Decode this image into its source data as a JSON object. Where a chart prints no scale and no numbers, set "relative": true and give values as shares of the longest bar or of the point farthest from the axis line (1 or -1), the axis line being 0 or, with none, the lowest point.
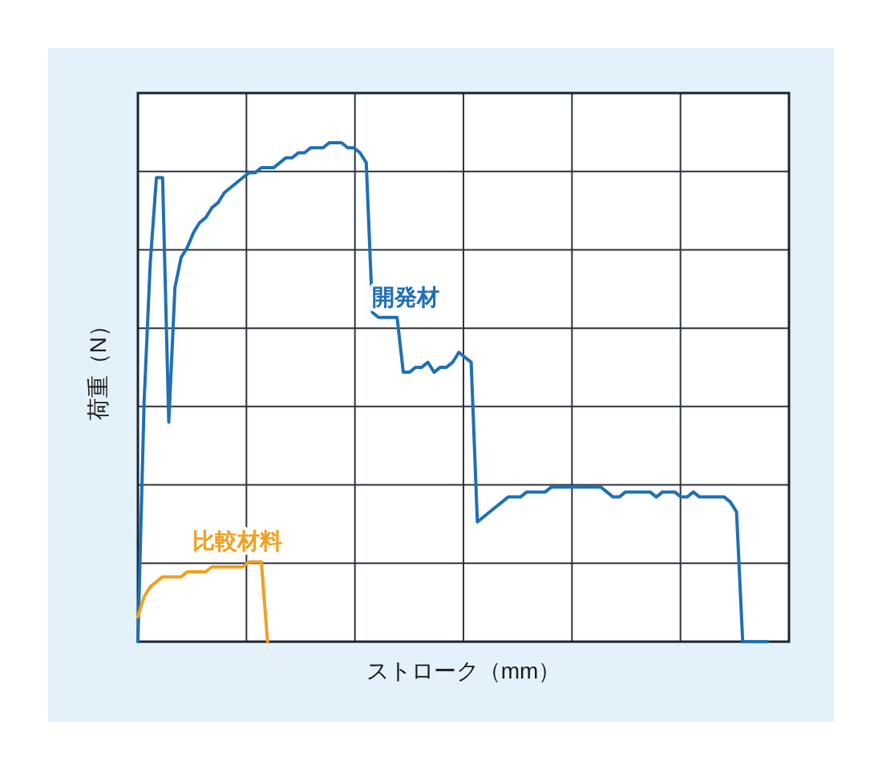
{
  "chart_data": {
    "type": "line",
    "relative": true,
    "xlabel": "ストローク（mm）",
    "ylabel": "荷重（N）",
    "grid": true,
    "categories": [
      null,
      null,
      null,
      null,
      null,
      null,
      null,
      null,
      null,
      null,
      null,
      null,
      null,
      null,
      null,
      null,
      null,
      null,
      null,
      null,
      null,
      null,
      null,
      null,
      null,
      null,
      null,
      null,
      null,
      null,
      null,
      null,
      null,
      null,
      null,
      null,
      null,
      null,
      null,
      null,
      null,
      null,
      null,
      null,
      null,
      null,
      null,
      null,
      null,
      null,
      null,
      null,
      null,
      null,
      null,
      null,
      null,
      null,
      null,
      null,
      null,
      null,
      null,
      null,
      null,
      null,
      null,
      null,
      null,
      null,
      null,
      null,
      null,
      null,
      null,
      null,
      null,
      null,
      null,
      null,
      null,
      null,
      null,
      null,
      null,
      null,
      null,
      null,
      null,
      null,
      null,
      null,
      null,
      null,
      null,
      null,
      null,
      null,
      null,
      null,
      null,
      null,
      null
    ],
    "series": [
      {
        "name": "開発材",
        "color": "#1f6fb5",
        "values": [
          0,
          0.48,
          0.76,
          0.93,
          0.93,
          0.44,
          0.71,
          0.77,
          0.79,
          0.82,
          0.84,
          0.85,
          0.87,
          0.88,
          0.9,
          0.91,
          0.92,
          0.93,
          0.94,
          0.94,
          0.95,
          0.95,
          0.95,
          0.96,
          0.97,
          0.97,
          0.98,
          0.98,
          0.99,
          0.99,
          0.99,
          1,
          1,
          1,
          0.99,
          0.99,
          0.98,
          0.96,
          0.66,
          0.65,
          0.65,
          0.65,
          0.65,
          0.54,
          0.54,
          0.55,
          0.55,
          0.56,
          0.54,
          0.55,
          0.55,
          0.56,
          0.58,
          0.57,
          0.56,
          0.24,
          0.25,
          0.26,
          0.27,
          0.28,
          0.29,
          0.29,
          0.29,
          0.3,
          0.3,
          0.3,
          0.3,
          0.31,
          0.31,
          0.31,
          0.31,
          0.31,
          0.31,
          0.31,
          0.31,
          0.31,
          0.3,
          0.29,
          0.29,
          0.3,
          0.3,
          0.3,
          0.3,
          0.3,
          0.29,
          0.3,
          0.3,
          0.3,
          0.29,
          0.29,
          0.3,
          0.29,
          0.29,
          0.29,
          0.29,
          0.29,
          0.28,
          0.26,
          0,
          0,
          0,
          0,
          0
        ]
      },
      {
        "name": "比較材料",
        "color": "#f0a020",
        "values": [
          0.05,
          0.09,
          0.11,
          0.12,
          0.13,
          0.13,
          0.13,
          0.13,
          0.14,
          0.14,
          0.14,
          0.14,
          0.15,
          0.15,
          0.15,
          0.15,
          0.15,
          0.15,
          0.16,
          0.16,
          0.16,
          0,
          null,
          null,
          null,
          null,
          null,
          null,
          null,
          null,
          null,
          null,
          null,
          null,
          null,
          null,
          null,
          null,
          null,
          null,
          null,
          null,
          null,
          null,
          null,
          null,
          null,
          null,
          null,
          null,
          null,
          null,
          null,
          null,
          null,
          null,
          null,
          null,
          null,
          null,
          null,
          null,
          null,
          null,
          null,
          null,
          null,
          null,
          null,
          null,
          null,
          null,
          null,
          null,
          null,
          null,
          null,
          null,
          null,
          null,
          null,
          null,
          null,
          null,
          null,
          null,
          null,
          null,
          null,
          null,
          null,
          null,
          null,
          null,
          null,
          null,
          null,
          null,
          null,
          null,
          null,
          null,
          null
        ]
      }
    ]
  }
}
